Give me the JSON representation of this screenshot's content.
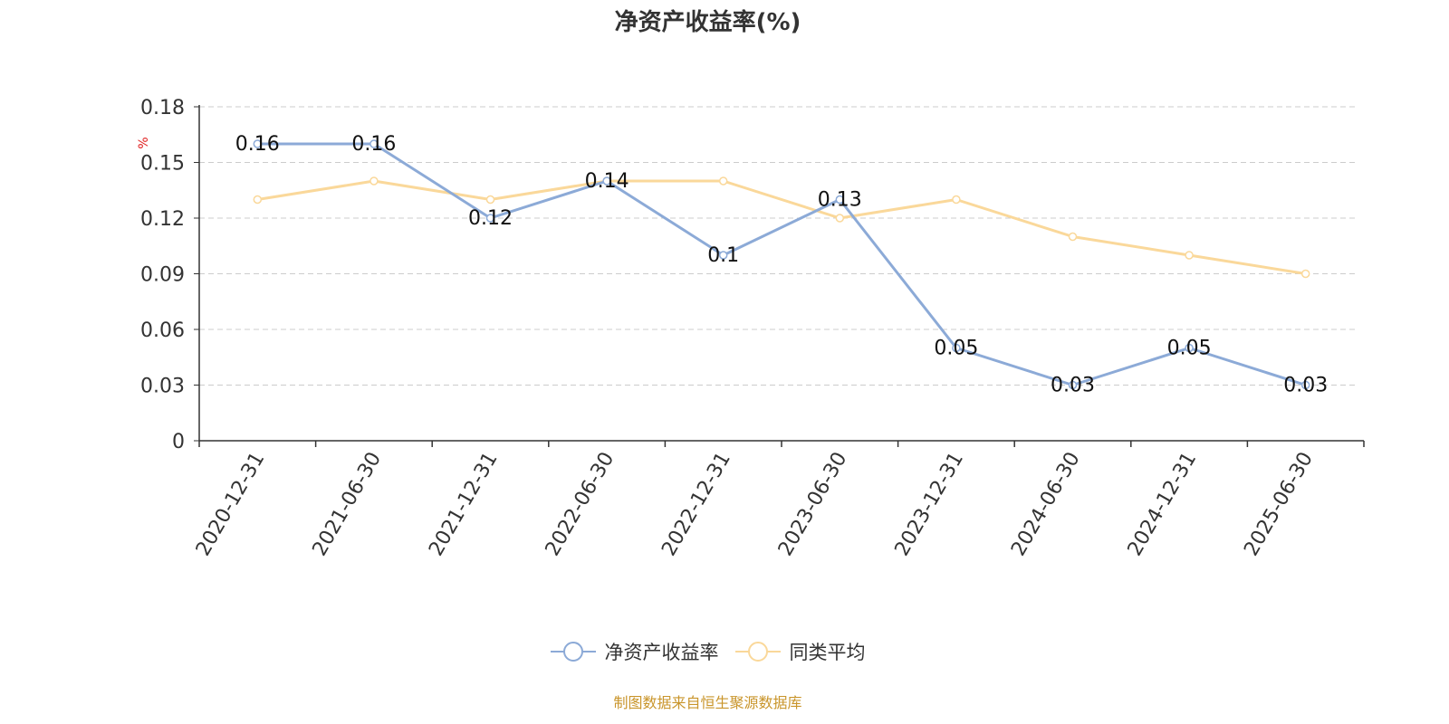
{
  "title": "净资产收益率(%)",
  "source": "制图数据来自恒生聚源数据库",
  "chart_data": {
    "type": "line",
    "title": "净资产收益率(%)",
    "ylabel": "%",
    "xlabel": "",
    "ylim": [
      0,
      0.18
    ],
    "yticks": [
      "0",
      "0.03",
      "0.06",
      "0.09",
      "0.12",
      "0.15",
      "0.18"
    ],
    "grid": true,
    "legend": "bottom-center",
    "categories": [
      "2020-12-31",
      "2021-06-30",
      "2021-12-31",
      "2022-06-30",
      "2022-12-31",
      "2023-06-30",
      "2023-12-31",
      "2024-06-30",
      "2024-12-31",
      "2025-06-30"
    ],
    "series": [
      {
        "name": "净资产收益率",
        "color": "#8caad7",
        "values": [
          0.16,
          0.16,
          0.12,
          0.14,
          0.1,
          0.13,
          0.05,
          0.03,
          0.05,
          0.03
        ],
        "labels": [
          "0.16",
          "0.16",
          "0.12",
          "0.14",
          "0.1",
          "0.13",
          "0.05",
          "0.03",
          "0.05",
          "0.03"
        ]
      },
      {
        "name": "同类平均",
        "color": "#fad89a",
        "values": [
          0.13,
          0.14,
          0.13,
          0.14,
          0.14,
          0.12,
          0.13,
          0.11,
          0.1,
          0.09
        ]
      }
    ]
  }
}
